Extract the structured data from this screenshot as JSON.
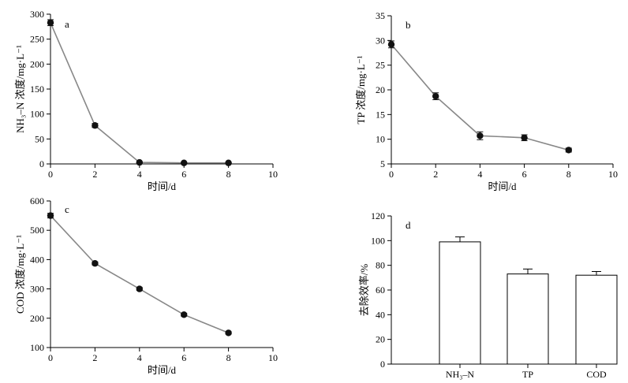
{
  "chart_data": [
    {
      "panel": "a",
      "type": "line",
      "x": [
        0,
        2,
        4,
        6,
        8
      ],
      "series": [
        {
          "values": [
            283,
            77,
            3,
            2,
            2
          ],
          "errors": [
            6,
            4,
            1,
            1,
            1
          ]
        }
      ],
      "xlabel": "时间/d",
      "ylabel": "NH₃–N 浓度/mg·L⁻¹",
      "xlim": [
        0,
        10
      ],
      "ylim": [
        0,
        300
      ],
      "xticks": [
        0,
        2,
        4,
        6,
        8,
        10
      ],
      "yticks": [
        0,
        50,
        100,
        150,
        200,
        250,
        300
      ],
      "grid": false
    },
    {
      "panel": "b",
      "type": "line",
      "x": [
        0,
        2,
        4,
        6,
        8
      ],
      "series": [
        {
          "values": [
            29.2,
            18.7,
            10.7,
            10.3,
            7.8
          ],
          "errors": [
            0.7,
            0.7,
            0.8,
            0.6,
            0.4
          ]
        }
      ],
      "xlabel": "时间/d",
      "ylabel": "TP 浓度/mg·L⁻¹",
      "xlim": [
        0,
        10
      ],
      "ylim": [
        5,
        35
      ],
      "xticks": [
        0,
        2,
        4,
        6,
        8,
        10
      ],
      "yticks": [
        5,
        10,
        15,
        20,
        25,
        30,
        35
      ],
      "grid": false
    },
    {
      "panel": "c",
      "type": "line",
      "x": [
        0,
        2,
        4,
        6,
        8
      ],
      "series": [
        {
          "values": [
            550,
            387,
            300,
            212,
            150
          ],
          "errors": [
            8,
            5,
            5,
            5,
            4
          ]
        }
      ],
      "xlabel": "时间/d",
      "ylabel": "COD 浓度/mg·L⁻¹",
      "xlim": [
        0,
        10
      ],
      "ylim": [
        100,
        600
      ],
      "xticks": [
        0,
        2,
        4,
        6,
        8,
        10
      ],
      "yticks": [
        100,
        200,
        300,
        400,
        500,
        600
      ],
      "grid": false
    },
    {
      "panel": "d",
      "type": "bar",
      "categories": [
        "NH₃–N",
        "TP",
        "COD"
      ],
      "series": [
        {
          "values": [
            99,
            73,
            72
          ],
          "errors": [
            4,
            4,
            3
          ]
        }
      ],
      "xlabel": "",
      "ylabel": "去除效率/%",
      "ylim": [
        0,
        120
      ],
      "yticks": [
        0,
        20,
        40,
        60,
        80,
        100,
        120
      ],
      "grid": false
    }
  ],
  "colors": {
    "line": "#888888",
    "marker": "#111111",
    "axis": "#000000",
    "bar_fill": "#ffffff"
  }
}
